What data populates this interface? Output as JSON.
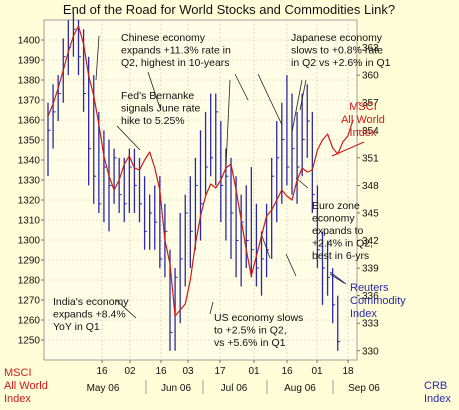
{
  "chart_data": {
    "type": "line",
    "title": "End of the Road for World Stocks and Commodities Link?",
    "x_ticks": [
      "16",
      "02",
      "16",
      "03",
      "17",
      "01",
      "16",
      "01",
      "18"
    ],
    "x_month_labels": [
      "May 06",
      "Jun 06",
      "Jul 06",
      "Aug 06",
      "Sep 06"
    ],
    "y_left": {
      "label": [
        "MSCI",
        "All World",
        "Index"
      ],
      "range": [
        1240,
        1410
      ],
      "ticks": [
        1250,
        1260,
        1270,
        1280,
        1290,
        1300,
        1310,
        1320,
        1330,
        1340,
        1350,
        1360,
        1370,
        1380,
        1390,
        1400
      ]
    },
    "y_right": {
      "label": [
        "CRB",
        "Index"
      ],
      "range": [
        329,
        366
      ],
      "ticks": [
        330,
        333,
        336,
        339,
        342,
        345,
        348,
        351,
        354,
        357,
        360,
        363
      ]
    },
    "series": [
      {
        "name": "MSCI All World Index",
        "color": "#cc1a1a",
        "axis": "left",
        "labels": [
          "MSCI",
          "All World",
          "Index"
        ],
        "points": [
          [
            0,
            1362
          ],
          [
            1,
            1368
          ],
          [
            2,
            1376
          ],
          [
            3,
            1385
          ],
          [
            4,
            1394
          ],
          [
            5,
            1402
          ],
          [
            6,
            1407
          ],
          [
            7,
            1398
          ],
          [
            8,
            1382
          ],
          [
            9,
            1372
          ],
          [
            10,
            1358
          ],
          [
            11,
            1342
          ],
          [
            12,
            1332
          ],
          [
            13,
            1325
          ],
          [
            14,
            1330
          ],
          [
            15,
            1338
          ],
          [
            16,
            1342
          ],
          [
            17,
            1336
          ],
          [
            18,
            1335
          ],
          [
            19,
            1340
          ],
          [
            20,
            1344
          ],
          [
            21,
            1336
          ],
          [
            22,
            1325
          ],
          [
            23,
            1300
          ],
          [
            24,
            1288
          ],
          [
            25,
            1262
          ],
          [
            26,
            1265
          ],
          [
            27,
            1268
          ],
          [
            28,
            1280
          ],
          [
            29,
            1298
          ],
          [
            30,
            1312
          ],
          [
            31,
            1322
          ],
          [
            32,
            1328
          ],
          [
            33,
            1326
          ],
          [
            34,
            1330
          ],
          [
            35,
            1336
          ],
          [
            36,
            1338
          ],
          [
            37,
            1325
          ],
          [
            38,
            1310
          ],
          [
            39,
            1295
          ],
          [
            40,
            1282
          ],
          [
            41,
            1292
          ],
          [
            42,
            1302
          ],
          [
            43,
            1312
          ],
          [
            44,
            1315
          ],
          [
            45,
            1320
          ],
          [
            46,
            1325
          ],
          [
            47,
            1322
          ],
          [
            48,
            1320
          ],
          [
            49,
            1330
          ],
          [
            50,
            1336
          ],
          [
            51,
            1334
          ],
          [
            52,
            1335
          ],
          [
            53,
            1345
          ],
          [
            54,
            1350
          ],
          [
            55,
            1353
          ],
          [
            56,
            1346
          ],
          [
            57,
            1343
          ],
          [
            58,
            1349
          ],
          [
            59,
            1352
          ],
          [
            60,
            1360
          ]
        ]
      },
      {
        "name": "Reuters Commodity Index",
        "color": "#2a2aa8",
        "axis": "right",
        "labels": [
          "Reuters",
          "Commodity",
          "Index"
        ],
        "ohlc": [
          [
            0,
            357,
            349,
            354
          ],
          [
            1,
            359,
            352,
            356
          ],
          [
            2,
            360,
            355,
            358
          ],
          [
            3,
            364,
            357,
            362
          ],
          [
            4,
            366,
            360,
            363
          ],
          [
            5,
            367,
            362,
            365
          ],
          [
            6,
            366,
            360,
            362
          ],
          [
            7,
            365,
            356,
            358
          ],
          [
            8,
            362,
            348,
            352
          ],
          [
            9,
            360,
            346,
            349
          ],
          [
            10,
            356,
            345,
            346
          ],
          [
            11,
            354,
            344,
            350
          ],
          [
            12,
            353,
            343,
            348
          ],
          [
            13,
            352,
            346,
            351
          ],
          [
            14,
            351,
            345,
            347
          ],
          [
            15,
            351,
            344,
            346
          ],
          [
            16,
            352,
            345,
            350
          ],
          [
            17,
            352,
            345,
            348
          ],
          [
            18,
            351,
            344,
            346
          ],
          [
            19,
            349,
            341,
            343
          ],
          [
            20,
            347,
            341,
            345
          ],
          [
            21,
            348,
            341,
            344
          ],
          [
            22,
            349,
            339,
            340
          ],
          [
            23,
            346,
            338,
            343
          ],
          [
            24,
            341,
            330,
            332
          ],
          [
            25,
            339,
            330,
            338
          ],
          [
            26,
            345,
            333,
            340
          ],
          [
            27,
            347,
            337,
            345
          ],
          [
            28,
            349,
            339,
            343
          ],
          [
            29,
            351,
            341,
            348
          ],
          [
            30,
            354,
            342,
            346
          ],
          [
            31,
            356,
            347,
            350
          ],
          [
            32,
            358,
            349,
            351
          ],
          [
            33,
            358,
            348,
            356
          ],
          [
            34,
            355,
            344,
            348
          ],
          [
            35,
            352,
            342,
            349
          ],
          [
            36,
            351,
            340,
            345
          ],
          [
            37,
            349,
            338,
            342
          ],
          [
            38,
            347,
            337,
            344
          ],
          [
            39,
            348,
            339,
            342
          ],
          [
            40,
            350,
            338,
            341
          ],
          [
            41,
            346,
            337,
            339
          ],
          [
            42,
            343,
            336,
            340
          ],
          [
            43,
            346,
            338,
            341
          ],
          [
            44,
            351,
            340,
            349
          ],
          [
            45,
            355,
            344,
            351
          ],
          [
            46,
            357,
            346,
            353
          ],
          [
            47,
            360,
            348,
            350
          ],
          [
            48,
            358,
            347,
            352
          ],
          [
            49,
            356,
            346,
            350
          ],
          [
            50,
            358,
            349,
            353
          ],
          [
            51,
            359,
            351,
            355
          ],
          [
            52,
            356,
            345,
            347
          ],
          [
            53,
            348,
            339,
            341
          ],
          [
            54,
            343,
            335,
            339
          ],
          [
            55,
            342,
            336,
            338
          ],
          [
            56,
            339,
            333,
            335
          ],
          [
            57,
            336,
            330,
            331
          ]
        ]
      }
    ],
    "annotations": [
      {
        "text": [
          "Chinese economy",
          "expands +11.3% rate in",
          "Q2, highest in 10-years"
        ]
      },
      {
        "text": [
          "Japanese economy",
          "slows to +0.8% rate",
          "in Q2 vs +2.6% in Q1"
        ]
      },
      {
        "text": [
          "Fed's Bernanke",
          "signals June rate",
          "hike to 5.25%"
        ]
      },
      {
        "text": [
          "Euro zone",
          "economy",
          "expands to",
          "+2.4% in Q2,",
          "best in 6-yrs"
        ]
      },
      {
        "text": [
          "India's economy",
          "expands +8.4%",
          "YoY in Q1"
        ]
      },
      {
        "text": [
          "US economy slows",
          "to +2.5% in Q2,",
          "vs +5.6% in Q1"
        ]
      }
    ],
    "grid": true,
    "legend": "inline labels"
  }
}
